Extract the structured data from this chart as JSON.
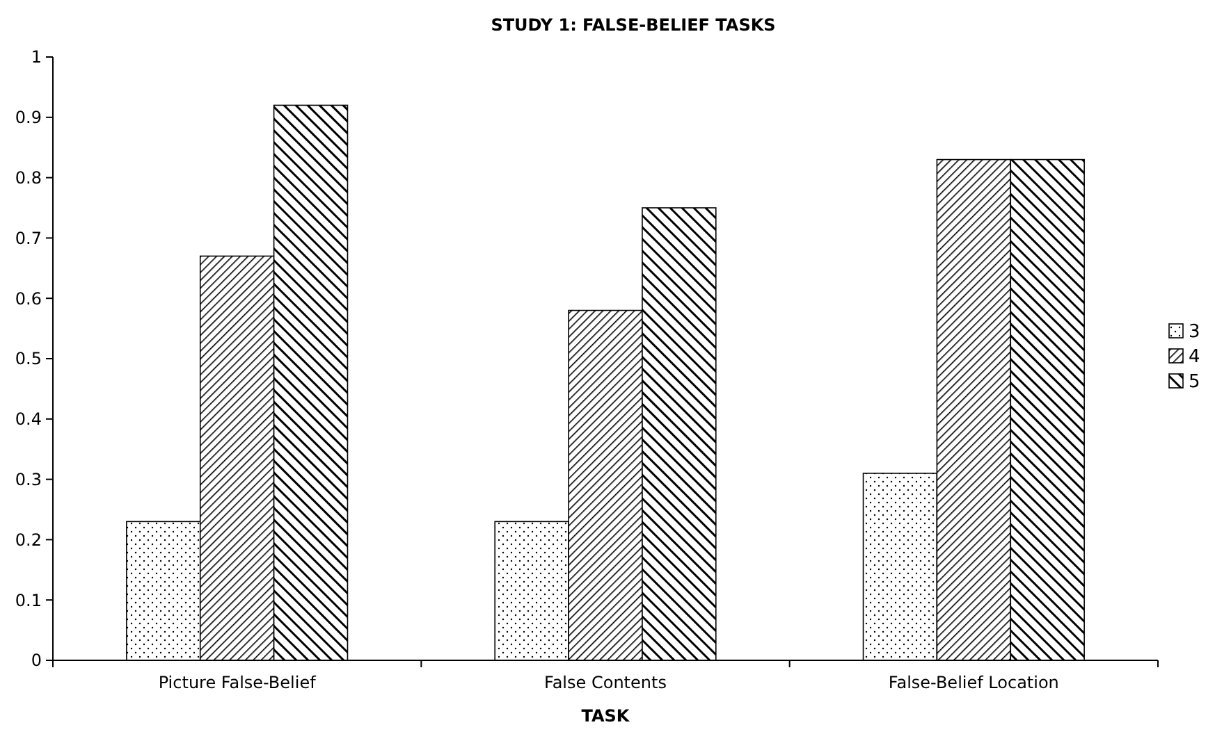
{
  "chart_data": {
    "type": "bar",
    "title": "STUDY 1: FALSE-BELIEF TASKS",
    "xlabel": "TASK",
    "categories": [
      "Picture False-Belief",
      "False Contents",
      "False-Belief Location"
    ],
    "series": [
      {
        "name": "3",
        "color": "#000000",
        "values": [
          0.23,
          0.23,
          0.31
        ]
      },
      {
        "name": "4",
        "color": "#000000",
        "values": [
          0.67,
          0.58,
          0.83
        ]
      },
      {
        "name": "5",
        "color": "#000000",
        "values": [
          0.92,
          0.75,
          0.83
        ]
      }
    ],
    "ylim": [
      0,
      1
    ],
    "yticks": [
      0,
      0.1,
      0.2,
      0.3,
      0.4,
      0.5,
      0.6,
      0.7,
      0.8,
      0.9,
      1
    ],
    "grid": false,
    "legend": "right"
  }
}
